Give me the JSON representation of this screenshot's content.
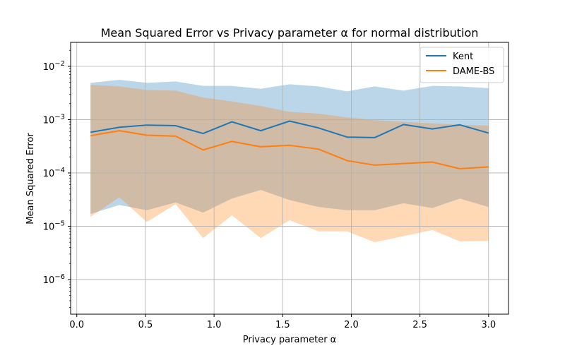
{
  "chart_data": {
    "type": "line",
    "title": "Mean Squared Error vs Privacy parameter α for normal distribution",
    "xlabel": "Privacy parameter α",
    "ylabel": "Mean Squared Error",
    "xlim": [
      -0.045,
      3.145
    ],
    "ylim_log10": [
      -6.65,
      -1.55
    ],
    "y_scale": "log",
    "grid": true,
    "legend_position": "top-right",
    "x_ticks": [
      0.0,
      0.5,
      1.0,
      1.5,
      2.0,
      2.5,
      3.0
    ],
    "x_tick_labels": [
      "0.0",
      "0.5",
      "1.0",
      "1.5",
      "2.0",
      "2.5",
      "3.0"
    ],
    "y_ticks_exp": [
      -2,
      -3,
      -4,
      -5,
      -6
    ],
    "x": [
      0.1,
      0.31,
      0.51,
      0.72,
      0.92,
      1.13,
      1.34,
      1.55,
      1.76,
      1.97,
      2.17,
      2.38,
      2.59,
      2.79,
      3.0
    ],
    "series": [
      {
        "name": "Kent",
        "color": "#1f77b4",
        "values": [
          0.00058,
          0.00072,
          0.00079,
          0.00077,
          0.00055,
          0.00091,
          0.00062,
          0.00094,
          0.0007,
          0.00047,
          0.00046,
          0.00081,
          0.00067,
          0.0008,
          0.00056
        ],
        "upper": [
          0.0049,
          0.0056,
          0.0049,
          0.0052,
          0.0043,
          0.0043,
          0.0038,
          0.0046,
          0.0042,
          0.0034,
          0.0042,
          0.0035,
          0.0043,
          0.0042,
          0.0039
        ],
        "lower": [
          1.7e-05,
          2.5e-05,
          2e-05,
          2.8e-05,
          1.8e-05,
          3.3e-05,
          4.8e-05,
          3.1e-05,
          2.3e-05,
          2e-05,
          2e-05,
          2.7e-05,
          2.2e-05,
          3.3e-05,
          2.3e-05
        ]
      },
      {
        "name": "DAME-BS",
        "color": "#ff7f0e",
        "values": [
          0.0005,
          0.00062,
          0.00051,
          0.00049,
          0.00027,
          0.00039,
          0.00031,
          0.00033,
          0.00028,
          0.00017,
          0.00014,
          0.00015,
          0.00016,
          0.00012,
          0.00013
        ],
        "upper": [
          0.0045,
          0.0042,
          0.0036,
          0.0035,
          0.0026,
          0.0022,
          0.0018,
          0.0014,
          0.0013,
          0.0011,
          0.00098,
          0.00091,
          0.00085,
          0.0008,
          0.00077
        ],
        "lower": [
          1.5e-05,
          3.5e-05,
          1.2e-05,
          2.6e-05,
          6e-06,
          1.6e-05,
          6e-06,
          1.3e-05,
          8e-06,
          8e-06,
          5e-06,
          6.5e-06,
          8.5e-06,
          5.2e-06,
          5.3e-06
        ]
      }
    ]
  }
}
